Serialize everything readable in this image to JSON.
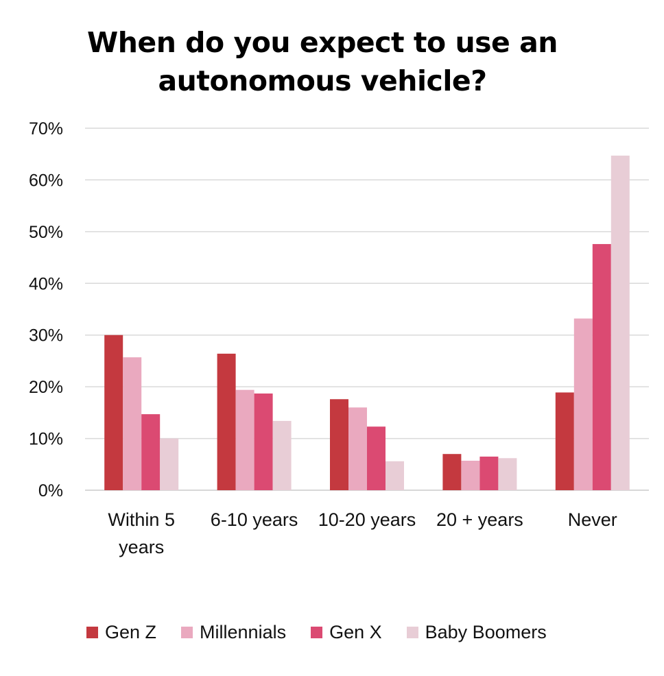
{
  "chart_data": {
    "type": "bar",
    "title": [
      "When do you expect to use an",
      "autonomous vehicle?"
    ],
    "categories": [
      [
        "Within 5",
        "years"
      ],
      [
        "6-10 years"
      ],
      [
        "10-20 years"
      ],
      [
        "20 + years"
      ],
      [
        "Never"
      ]
    ],
    "series": [
      {
        "name": "Gen Z",
        "color": "#c4393f",
        "values": [
          30,
          26.4,
          17.6,
          7.0,
          18.9
        ]
      },
      {
        "name": "Millennials",
        "color": "#eaa9bf",
        "values": [
          25.7,
          19.4,
          16.0,
          5.7,
          33.2
        ]
      },
      {
        "name": "Gen X",
        "color": "#db4a72",
        "values": [
          14.7,
          18.7,
          12.3,
          6.5,
          47.6
        ]
      },
      {
        "name": "Baby Boomers",
        "color": "#e8cdd6",
        "values": [
          10.0,
          13.4,
          5.6,
          6.2,
          64.7
        ]
      }
    ],
    "ylim": [
      0,
      70
    ],
    "yticks": [
      "0%",
      "10%",
      "20%",
      "30%",
      "40%",
      "50%",
      "60%",
      "70%"
    ],
    "grid": true,
    "legend": "bottom"
  }
}
